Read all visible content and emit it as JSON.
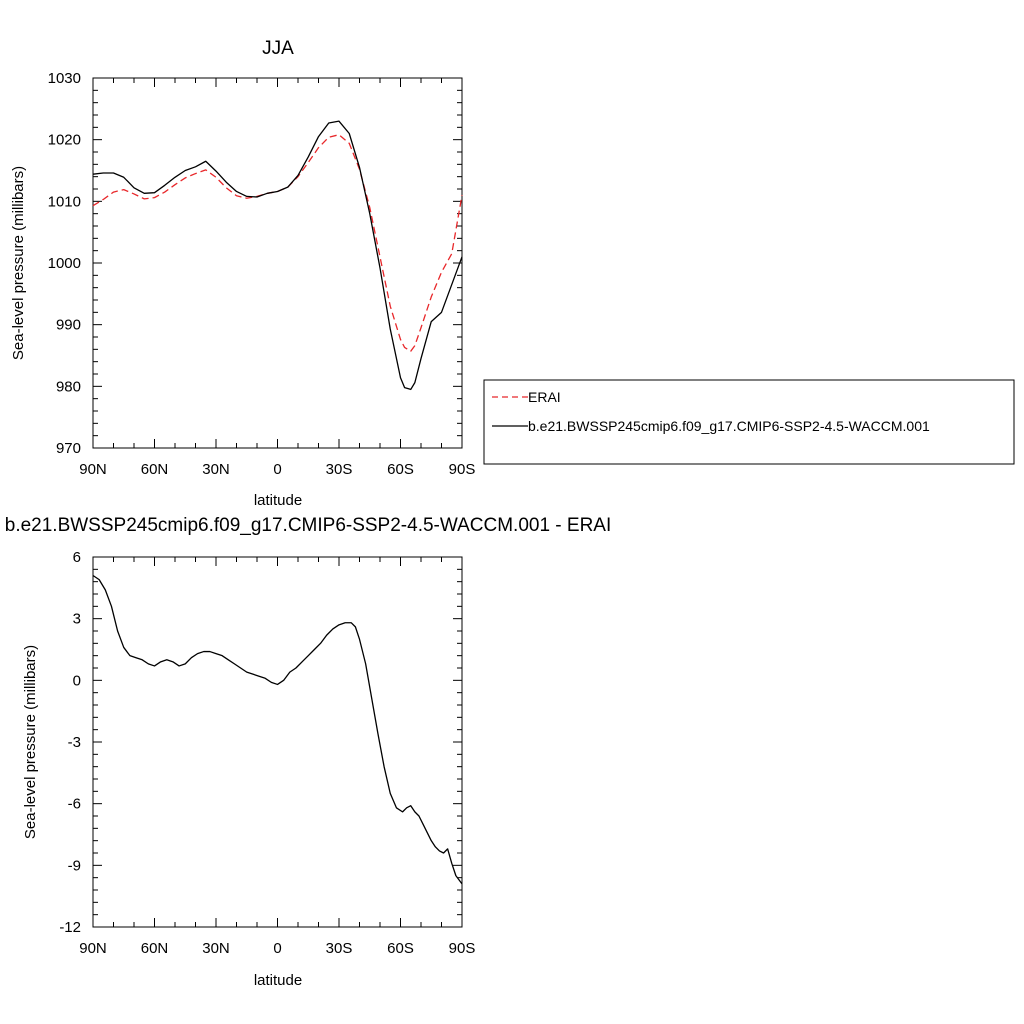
{
  "chart_data": [
    {
      "type": "line",
      "title": "JJA",
      "xlabel": "latitude",
      "ylabel": "Sea-level pressure (millibars)",
      "x_ticks": [
        {
          "value": -90,
          "label": "90N"
        },
        {
          "value": -60,
          "label": "60N"
        },
        {
          "value": -30,
          "label": "30N"
        },
        {
          "value": 0,
          "label": "0"
        },
        {
          "value": 30,
          "label": "30S"
        },
        {
          "value": 60,
          "label": "60S"
        },
        {
          "value": 90,
          "label": "90S"
        }
      ],
      "y_ticks": [
        970,
        980,
        990,
        1000,
        1010,
        1020,
        1030
      ],
      "xlim": [
        -90,
        90
      ],
      "ylim": [
        970,
        1030
      ],
      "legend_position": "right",
      "series": [
        {
          "name": "ERAI",
          "color": "#e8272a",
          "style": "dashed",
          "x": [
            -90,
            -85,
            -80,
            -75,
            -70,
            -65,
            -60,
            -55,
            -50,
            -45,
            -40,
            -35,
            -30,
            -25,
            -20,
            -15,
            -10,
            -5,
            0,
            5,
            10,
            15,
            20,
            25,
            30,
            35,
            40,
            45,
            50,
            55,
            60,
            62,
            65,
            67,
            70,
            75,
            80,
            85,
            90
          ],
          "y": [
            1009.3,
            1010.3,
            1011.5,
            1011.9,
            1011.2,
            1010.4,
            1010.6,
            1011.5,
            1012.7,
            1013.8,
            1014.5,
            1015.1,
            1013.9,
            1012.2,
            1010.9,
            1010.5,
            1010.8,
            1011.3,
            1011.6,
            1012.3,
            1014.0,
            1016.3,
            1018.7,
            1020.4,
            1020.8,
            1019.4,
            1015.2,
            1009.0,
            1001.0,
            993.0,
            987.6,
            986.3,
            985.7,
            986.6,
            989.5,
            994.5,
            998.5,
            1001.5,
            1011.0
          ]
        },
        {
          "name": "b.e21.BWSSP245cmip6.f09_g17.CMIP6-SSP2-4.5-WACCM.001",
          "color": "#000000",
          "style": "solid",
          "x": [
            -90,
            -85,
            -80,
            -75,
            -70,
            -65,
            -60,
            -55,
            -50,
            -45,
            -40,
            -35,
            -30,
            -25,
            -20,
            -15,
            -10,
            -5,
            0,
            5,
            10,
            15,
            20,
            25,
            30,
            35,
            40,
            45,
            50,
            55,
            60,
            62,
            65,
            67,
            70,
            75,
            80,
            85,
            90
          ],
          "y": [
            1014.4,
            1014.6,
            1014.6,
            1013.9,
            1012.2,
            1011.3,
            1011.4,
            1012.6,
            1013.9,
            1015.0,
            1015.6,
            1016.5,
            1014.9,
            1013.1,
            1011.6,
            1010.8,
            1010.7,
            1011.3,
            1011.6,
            1012.3,
            1014.2,
            1017.2,
            1020.5,
            1022.7,
            1023.0,
            1021.0,
            1015.5,
            1008.0,
            999.2,
            989.3,
            981.4,
            979.8,
            979.5,
            980.6,
            984.5,
            990.5,
            992.0,
            996.5,
            1001.0
          ]
        }
      ]
    },
    {
      "type": "line",
      "title": "b.e21.BWSSP245cmip6.f09_g17.CMIP6-SSP2-4.5-WACCM.001 - ERAI",
      "xlabel": "latitude",
      "ylabel": "Sea-level pressure (millibars)",
      "x_ticks": [
        {
          "value": -90,
          "label": "90N"
        },
        {
          "value": -60,
          "label": "60N"
        },
        {
          "value": -30,
          "label": "30N"
        },
        {
          "value": 0,
          "label": "0"
        },
        {
          "value": 30,
          "label": "30S"
        },
        {
          "value": 60,
          "label": "60S"
        },
        {
          "value": 90,
          "label": "90S"
        }
      ],
      "y_ticks": [
        {
          "value": -12,
          "label": "-12"
        },
        {
          "value": -9,
          "label": "-9"
        },
        {
          "value": -6,
          "label": "-6"
        },
        {
          "value": -3,
          "label": "-3"
        },
        {
          "value": 0,
          "label": "0"
        },
        {
          "value": 3,
          "label": "3"
        },
        {
          "value": 6,
          "label": "6"
        }
      ],
      "xlim": [
        -90,
        90
      ],
      "ylim": [
        -12,
        6
      ],
      "series": [
        {
          "color": "#000000",
          "style": "solid",
          "x": [
            -90,
            -87,
            -84,
            -81,
            -78,
            -75,
            -72,
            -69,
            -66,
            -63,
            -60,
            -57,
            -54,
            -51,
            -48,
            -45,
            -42,
            -39,
            -36,
            -33,
            -30,
            -27,
            -24,
            -21,
            -18,
            -15,
            -12,
            -9,
            -6,
            -3,
            0,
            3,
            6,
            9,
            12,
            15,
            18,
            21,
            24,
            27,
            30,
            33,
            36,
            38,
            40,
            43,
            46,
            49,
            52,
            55,
            58,
            61,
            63,
            65,
            67,
            69,
            71,
            73,
            75,
            77,
            79,
            81,
            83,
            85,
            87,
            90
          ],
          "y": [
            5.1,
            4.9,
            4.4,
            3.6,
            2.4,
            1.6,
            1.2,
            1.1,
            1.0,
            0.8,
            0.7,
            0.9,
            1.0,
            0.9,
            0.7,
            0.8,
            1.1,
            1.3,
            1.4,
            1.4,
            1.3,
            1.2,
            1.0,
            0.8,
            0.6,
            0.4,
            0.3,
            0.2,
            0.1,
            -0.1,
            -0.2,
            0.0,
            0.4,
            0.6,
            0.9,
            1.2,
            1.5,
            1.8,
            2.2,
            2.5,
            2.7,
            2.8,
            2.8,
            2.6,
            2.0,
            0.8,
            -0.9,
            -2.6,
            -4.2,
            -5.5,
            -6.2,
            -6.4,
            -6.2,
            -6.1,
            -6.4,
            -6.6,
            -7.0,
            -7.4,
            -7.8,
            -8.1,
            -8.3,
            -8.4,
            -8.2,
            -8.9,
            -9.5,
            -9.9
          ]
        }
      ]
    }
  ]
}
